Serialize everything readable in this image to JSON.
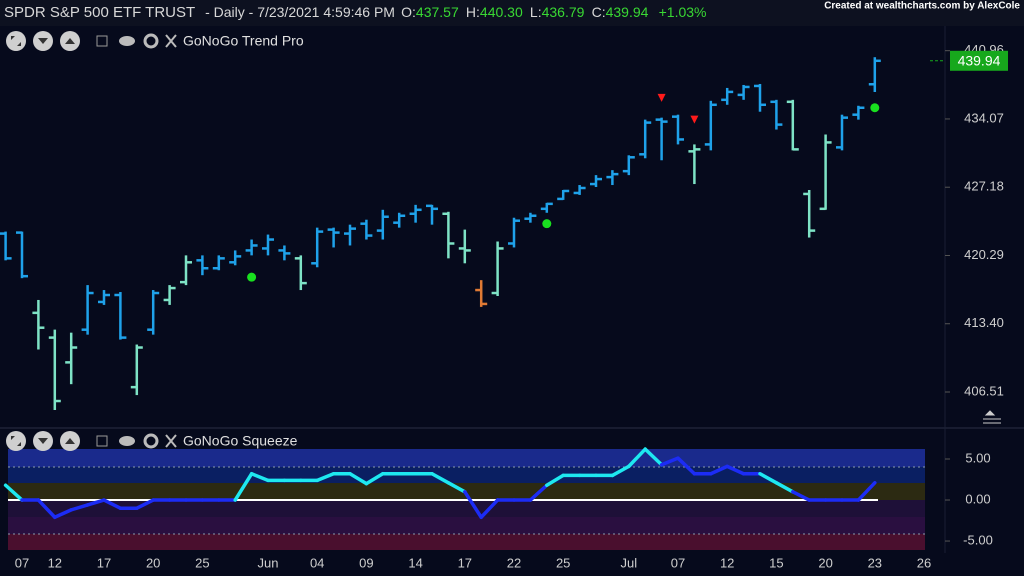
{
  "header": {
    "symbol": "SPDR S&P 500 ETF TRUST",
    "interval": "- Daily - 7/23/2021 4:59:46 PM",
    "open_label": "O:",
    "open": "437.57",
    "high_label": "H:",
    "high": "440.30",
    "low_label": "L:",
    "low": "436.79",
    "close_label": "C:",
    "close": "439.94",
    "change": "+1.03%",
    "credit": "Created at wealthcharts.com by AlexCole"
  },
  "chart_data": [
    {
      "type": "ohlc",
      "title": "GoNoGo Trend Pro",
      "categories": [
        null,
        "07",
        null,
        "12",
        null,
        null,
        "17",
        null,
        null,
        "20",
        null,
        null,
        "25",
        null,
        null,
        null,
        "Jun",
        null,
        null,
        "04",
        null,
        null,
        "09",
        null,
        null,
        "14",
        null,
        null,
        "17",
        null,
        null,
        "22",
        null,
        null,
        "25",
        null,
        null,
        null,
        "Jul",
        null,
        null,
        "07",
        null,
        null,
        "12",
        null,
        null,
        "15",
        null,
        null,
        "20",
        null,
        null,
        "23",
        null,
        null,
        "26"
      ],
      "open": [
        422.5,
        422.6,
        414.5,
        412.0,
        409.5,
        412.8,
        415.6,
        416.3,
        407.0,
        412.8,
        415.8,
        417.6,
        419.8,
        419.0,
        419.6,
        420.8,
        421.0,
        420.8,
        420.0,
        419.5,
        422.9,
        422.5,
        423.5,
        422.8,
        423.6,
        424.5,
        425.3,
        424.5,
        421.0,
        416.8,
        416.5,
        421.5,
        424.0,
        425.0,
        426.0,
        426.6,
        427.5,
        428.2,
        428.8,
        430.5,
        434.0,
        434.3,
        430.8,
        431.5,
        436.0,
        436.5,
        437.4,
        435.8,
        435.8,
        426.5,
        425.0,
        431.2,
        434.5,
        437.57,
        null,
        null,
        null
      ],
      "high": [
        422.7,
        422.7,
        415.8,
        412.8,
        412.5,
        417.3,
        416.8,
        416.6,
        411.3,
        416.8,
        417.3,
        420.3,
        420.3,
        420.3,
        420.8,
        421.9,
        422.4,
        421.3,
        420.3,
        423.1,
        423.1,
        423.4,
        423.9,
        424.9,
        424.6,
        425.4,
        425.4,
        424.7,
        422.9,
        417.8,
        421.7,
        424.1,
        424.6,
        425.6,
        426.9,
        427.4,
        428.4,
        428.9,
        430.4,
        434.0,
        434.2,
        434.5,
        431.5,
        435.9,
        437.2,
        437.5,
        437.6,
        436.0,
        436.0,
        426.9,
        432.5,
        434.5,
        435.4,
        440.3,
        null,
        null,
        null
      ],
      "low": [
        419.8,
        418.0,
        410.8,
        404.7,
        407.3,
        412.3,
        415.3,
        411.8,
        406.2,
        412.3,
        415.3,
        417.3,
        418.3,
        418.8,
        419.3,
        420.3,
        420.3,
        419.8,
        416.8,
        419.1,
        421.1,
        421.3,
        421.9,
        421.9,
        423.1,
        423.6,
        423.4,
        420.0,
        419.5,
        415.1,
        416.2,
        421.1,
        423.6,
        424.6,
        425.9,
        426.4,
        427.2,
        427.4,
        428.4,
        430.1,
        429.9,
        431.5,
        427.5,
        430.9,
        435.5,
        436.0,
        434.8,
        433.0,
        430.9,
        422.1,
        424.9,
        430.9,
        434.0,
        436.79,
        null,
        null,
        null
      ],
      "close": [
        420.0,
        418.2,
        413.0,
        405.6,
        411.0,
        416.5,
        416.3,
        412.0,
        411.0,
        416.5,
        417.0,
        419.6,
        419.0,
        420.0,
        420.2,
        421.3,
        421.9,
        420.5,
        417.5,
        422.7,
        422.6,
        423.0,
        422.3,
        424.2,
        424.3,
        424.9,
        425.0,
        421.5,
        420.8,
        415.4,
        421.0,
        423.8,
        424.3,
        425.5,
        426.8,
        427.1,
        428.0,
        428.5,
        430.2,
        433.7,
        433.8,
        432.0,
        431.0,
        435.5,
        436.8,
        437.3,
        435.5,
        433.5,
        431.0,
        422.8,
        431.7,
        434.2,
        435.2,
        439.94,
        null,
        null,
        null
      ],
      "colors": [
        "#1fa2ea",
        "#1fa2ea",
        "#7ee3c6",
        "#7ee3c6",
        "#7ee3c6",
        "#1fa2ea",
        "#1fa2ea",
        "#1fa2ea",
        "#7ee3c6",
        "#1fa2ea",
        "#7ee3c6",
        "#7ee3c6",
        "#1fa2ea",
        "#1fa2ea",
        "#1fa2ea",
        "#1fa2ea",
        "#1fa2ea",
        "#1fa2ea",
        "#7ee3c6",
        "#1fa2ea",
        "#1fa2ea",
        "#1fa2ea",
        "#1fa2ea",
        "#1fa2ea",
        "#1fa2ea",
        "#1fa2ea",
        "#1fa2ea",
        "#7ee3c6",
        "#7ee3c6",
        "#e07a34",
        "#7ee3c6",
        "#1fa2ea",
        "#1fa2ea",
        "#1fa2ea",
        "#1fa2ea",
        "#1fa2ea",
        "#1fa2ea",
        "#1fa2ea",
        "#1fa2ea",
        "#1fa2ea",
        "#1fa2ea",
        "#1fa2ea",
        "#7ee3c6",
        "#1fa2ea",
        "#1fa2ea",
        "#1fa2ea",
        "#1fa2ea",
        "#1fa2ea",
        "#7ee3c6",
        "#7ee3c6",
        "#7ee3c6",
        "#1fa2ea",
        "#1fa2ea",
        "#1fa2ea",
        null,
        null,
        null
      ],
      "go_dots": [
        null,
        null,
        null,
        null,
        null,
        null,
        null,
        null,
        null,
        null,
        null,
        null,
        null,
        null,
        null,
        418.1,
        null,
        null,
        null,
        null,
        null,
        null,
        null,
        null,
        null,
        null,
        null,
        null,
        null,
        null,
        null,
        null,
        null,
        423.5,
        null,
        null,
        null,
        null,
        null,
        null,
        null,
        null,
        null,
        null,
        null,
        null,
        null,
        null,
        null,
        null,
        null,
        null,
        null,
        435.2,
        null,
        null,
        null
      ],
      "go_dot_color": "#19e01f",
      "nogo_markers": [
        null,
        null,
        null,
        null,
        null,
        null,
        null,
        null,
        null,
        null,
        null,
        null,
        null,
        null,
        null,
        null,
        null,
        null,
        null,
        null,
        null,
        null,
        null,
        null,
        null,
        null,
        null,
        null,
        null,
        null,
        null,
        null,
        null,
        null,
        null,
        null,
        null,
        null,
        null,
        null,
        436.2,
        null,
        434.0,
        null,
        null,
        null,
        null,
        null,
        null,
        null,
        null,
        null,
        null,
        null,
        null,
        null,
        null
      ],
      "nogo_color": "#ff1a1a",
      "last_price_color": "#17a81c",
      "ylim": [
        403.2,
        443.3
      ],
      "yticks": [
        406.51,
        {
          "value": 413.4,
          "label": "413.40"
        },
        420.29,
        427.18,
        434.07,
        440.96
      ]
    },
    {
      "type": "line",
      "title": "GoNoGo Squeeze",
      "values": [
        1.8,
        0,
        0,
        -2.1,
        -1.2,
        -0.6,
        0,
        -1.0,
        -1.0,
        0,
        0,
        0,
        0,
        0,
        0,
        3.2,
        2.4,
        2.4,
        2.4,
        2.4,
        3.2,
        3.2,
        2.0,
        3.2,
        3.2,
        3.2,
        3.2,
        2.1,
        1.0,
        -2.1,
        0,
        0,
        0,
        1.8,
        3.0,
        3.0,
        3.0,
        3.0,
        4.1,
        6.2,
        4.3,
        5.1,
        3.2,
        3.2,
        4.1,
        3.2,
        3.2,
        2.1,
        1.0,
        0,
        0,
        0,
        0,
        2.1,
        null,
        null,
        null
      ],
      "colors": [
        "#1ee8f0",
        "#1ee8f0",
        "#1c2cf5",
        "#1c2cf5",
        "#1c2cf5",
        "#1c2cf5",
        "#1c2cf5",
        "#1c2cf5",
        "#1c2cf5",
        "#1c2cf5",
        "#1c2cf5",
        "#1c2cf5",
        "#1c2cf5",
        "#1c2cf5",
        "#1c2cf5",
        "#1ee8f0",
        "#1ee8f0",
        "#1ee8f0",
        "#1ee8f0",
        "#1ee8f0",
        "#1ee8f0",
        "#1ee8f0",
        "#1ee8f0",
        "#1ee8f0",
        "#1ee8f0",
        "#1ee8f0",
        "#1ee8f0",
        "#1ee8f0",
        "#1ee8f0",
        "#1c2cf5",
        "#1c2cf5",
        "#1c2cf5",
        "#1c2cf5",
        "#1c2cf5",
        "#1ee8f0",
        "#1ee8f0",
        "#1ee8f0",
        "#1ee8f0",
        "#1ee8f0",
        "#1ee8f0",
        "#1ee8f0",
        "#1c2cf5",
        "#1c2cf5",
        "#1c2cf5",
        "#1c2cf5",
        "#1c2cf5",
        "#1c2cf5",
        "#1ee8f0",
        "#1ee8f0",
        "#1c2cf5",
        "#1c2cf5",
        "#1c2cf5",
        "#1c2cf5",
        "#1c2cf5",
        null,
        null,
        null
      ],
      "zero_line_color": "#ffffff",
      "ylim": [
        -6.3,
        6.5
      ],
      "yticks": [
        {
          "value": 5,
          "label": "5.00"
        },
        {
          "value": 0,
          "label": "0.00"
        },
        {
          "value": -5,
          "label": "-5.00"
        }
      ]
    }
  ]
}
